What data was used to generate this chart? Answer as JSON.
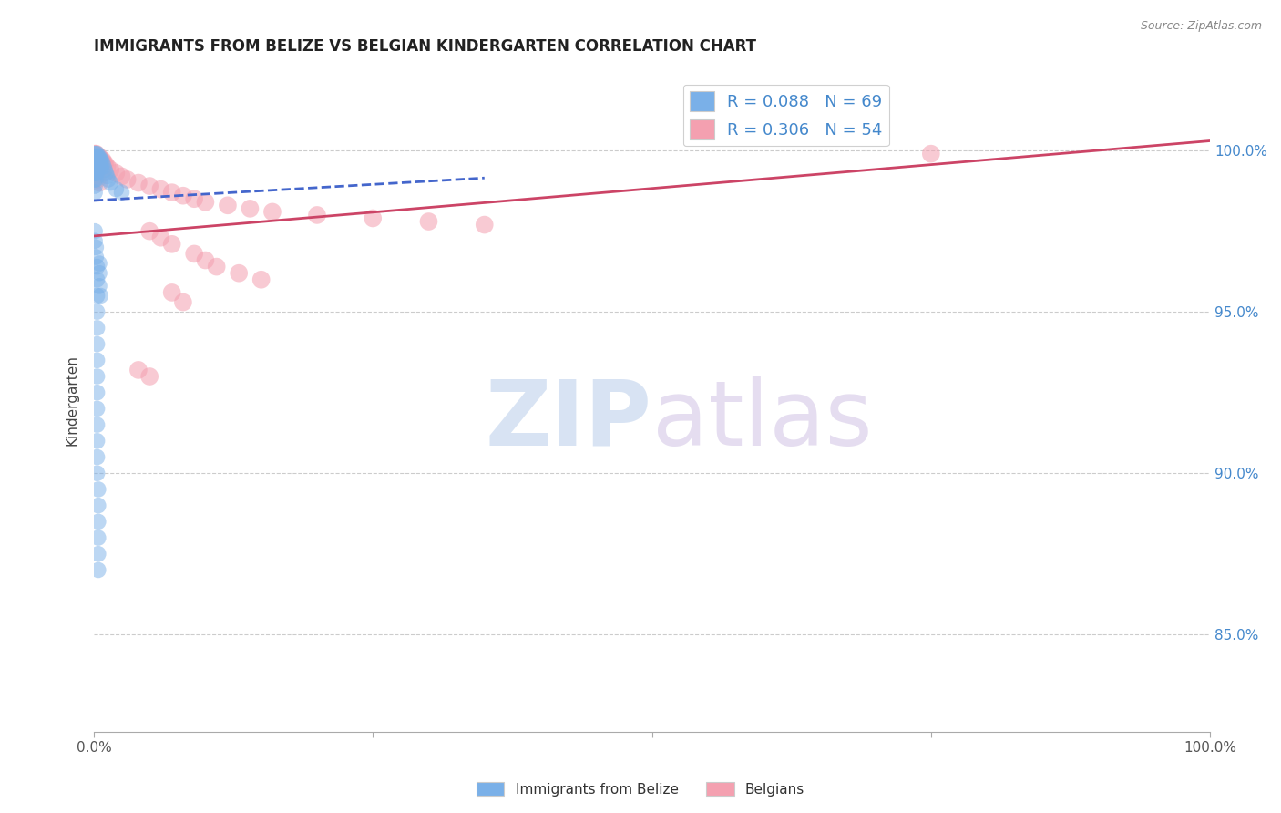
{
  "title": "IMMIGRANTS FROM BELIZE VS BELGIAN KINDERGARTEN CORRELATION CHART",
  "source": "Source: ZipAtlas.com",
  "ylabel": "Kindergarten",
  "ytick_labels": [
    "100.0%",
    "95.0%",
    "90.0%",
    "85.0%"
  ],
  "ytick_values": [
    1.0,
    0.95,
    0.9,
    0.85
  ],
  "xlim": [
    0.0,
    1.0
  ],
  "ylim": [
    0.82,
    1.025
  ],
  "legend_label1": "R = 0.088   N = 69",
  "legend_label2": "R = 0.306   N = 54",
  "legend_color1": "#7ab0e8",
  "legend_color2": "#f4a0b0",
  "trendline1_color": "#4466cc",
  "trendline2_color": "#cc4466",
  "watermark_zip": "ZIP",
  "watermark_atlas": "atlas",
  "watermark_color_zip": "#c5d8f0",
  "watermark_color_atlas": "#d8c8e8",
  "blue_scatter_x": [
    0.001,
    0.001,
    0.001,
    0.001,
    0.001,
    0.001,
    0.001,
    0.001,
    0.001,
    0.001,
    0.002,
    0.002,
    0.002,
    0.002,
    0.002,
    0.003,
    0.003,
    0.003,
    0.003,
    0.003,
    0.003,
    0.003,
    0.004,
    0.004,
    0.004,
    0.005,
    0.005,
    0.005,
    0.006,
    0.006,
    0.007,
    0.007,
    0.008,
    0.009,
    0.01,
    0.011,
    0.012,
    0.013,
    0.015,
    0.02,
    0.025,
    0.001,
    0.001,
    0.002,
    0.002,
    0.003,
    0.003,
    0.003,
    0.003,
    0.003,
    0.003,
    0.003,
    0.003,
    0.003,
    0.003,
    0.003,
    0.003,
    0.003,
    0.003,
    0.004,
    0.004,
    0.004,
    0.004,
    0.004,
    0.004,
    0.005,
    0.005,
    0.005,
    0.006
  ],
  "blue_scatter_y": [
    0.999,
    0.998,
    0.997,
    0.996,
    0.995,
    0.994,
    0.993,
    0.991,
    0.989,
    0.987,
    0.999,
    0.997,
    0.995,
    0.993,
    0.991,
    0.999,
    0.998,
    0.997,
    0.996,
    0.995,
    0.994,
    0.993,
    0.998,
    0.997,
    0.996,
    0.998,
    0.997,
    0.996,
    0.997,
    0.996,
    0.997,
    0.995,
    0.996,
    0.995,
    0.994,
    0.993,
    0.992,
    0.991,
    0.99,
    0.988,
    0.987,
    0.975,
    0.972,
    0.97,
    0.967,
    0.964,
    0.96,
    0.955,
    0.95,
    0.945,
    0.94,
    0.935,
    0.93,
    0.925,
    0.92,
    0.915,
    0.91,
    0.905,
    0.9,
    0.895,
    0.89,
    0.885,
    0.88,
    0.875,
    0.87,
    0.965,
    0.962,
    0.958,
    0.955
  ],
  "pink_scatter_x": [
    0.001,
    0.001,
    0.002,
    0.002,
    0.003,
    0.003,
    0.004,
    0.005,
    0.006,
    0.007,
    0.008,
    0.009,
    0.01,
    0.012,
    0.015,
    0.02,
    0.025,
    0.03,
    0.04,
    0.05,
    0.06,
    0.07,
    0.08,
    0.09,
    0.1,
    0.12,
    0.14,
    0.16,
    0.2,
    0.25,
    0.3,
    0.35,
    0.05,
    0.06,
    0.07,
    0.09,
    0.1,
    0.11,
    0.13,
    0.15,
    0.07,
    0.08,
    0.75,
    0.04,
    0.05,
    0.001,
    0.002,
    0.003,
    0.003,
    0.004,
    0.005,
    0.002,
    0.003,
    0.005
  ],
  "pink_scatter_y": [
    0.999,
    0.998,
    0.999,
    0.997,
    0.998,
    0.997,
    0.998,
    0.998,
    0.997,
    0.997,
    0.997,
    0.996,
    0.996,
    0.995,
    0.994,
    0.993,
    0.992,
    0.991,
    0.99,
    0.989,
    0.988,
    0.987,
    0.986,
    0.985,
    0.984,
    0.983,
    0.982,
    0.981,
    0.98,
    0.979,
    0.978,
    0.977,
    0.975,
    0.973,
    0.971,
    0.968,
    0.966,
    0.964,
    0.962,
    0.96,
    0.956,
    0.953,
    0.999,
    0.932,
    0.93,
    0.996,
    0.995,
    0.994,
    0.996,
    0.995,
    0.994,
    0.992,
    0.991,
    0.99
  ],
  "blue_trend_x": [
    0.0,
    0.35
  ],
  "blue_trend_y": [
    0.9845,
    0.9915
  ],
  "pink_trend_x": [
    0.0,
    1.0
  ],
  "pink_trend_y": [
    0.9735,
    1.003
  ]
}
